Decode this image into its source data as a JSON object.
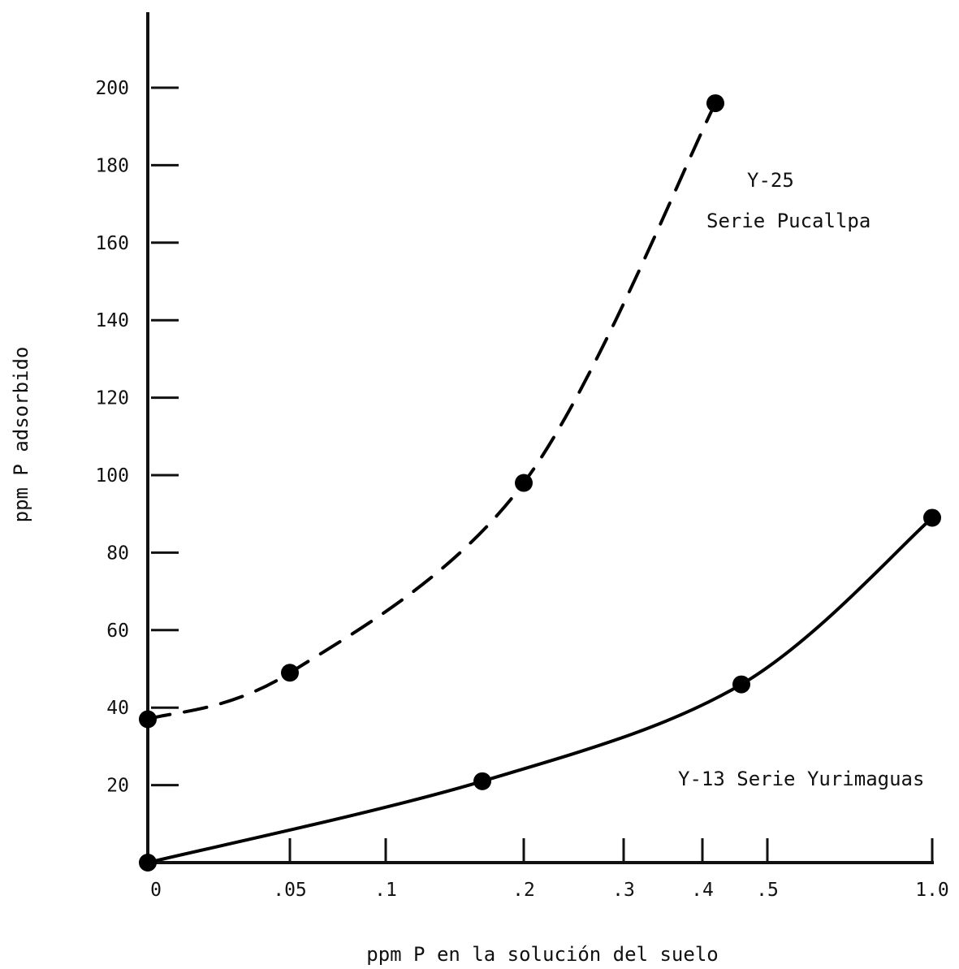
{
  "chart_data": {
    "type": "line",
    "xlabel": "ppm P en la solución del suelo",
    "ylabel": "ppm P adsorbido",
    "x_ticks": [
      "0",
      ".05",
      ".1",
      ".2",
      ".3",
      ".4",
      ".5",
      "1.0"
    ],
    "y_ticks": [
      "20",
      "40",
      "60",
      "80",
      "100",
      "120",
      "140",
      "160",
      "180",
      "200"
    ],
    "ylim": [
      0,
      200
    ],
    "x_scale": "non-linear",
    "series": [
      {
        "name_lines": [
          "Y-25",
          "Serie Pucallpa"
        ],
        "style": "dashed",
        "color": "#000000",
        "points": [
          {
            "x": 0,
            "y": 37
          },
          {
            "x": 0.05,
            "y": 49
          },
          {
            "x": 0.2,
            "y": 98
          },
          {
            "x": 0.42,
            "y": 196
          }
        ]
      },
      {
        "name_lines": [
          "Y-13 Serie Yurimaguas"
        ],
        "style": "solid",
        "color": "#000000",
        "points": [
          {
            "x": 0,
            "y": 0
          },
          {
            "x": 0.17,
            "y": 21
          },
          {
            "x": 0.46,
            "y": 46
          },
          {
            "x": 1.0,
            "y": 89
          }
        ]
      }
    ]
  }
}
